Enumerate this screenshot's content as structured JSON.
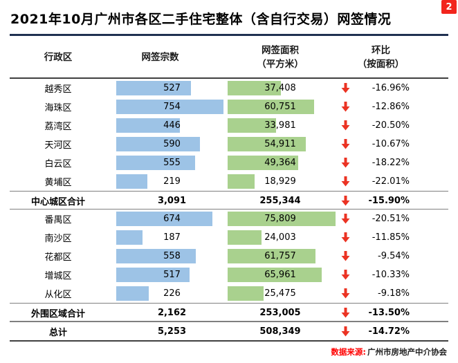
{
  "badge": {
    "label": "2",
    "color": "#f2241d"
  },
  "title": "2021年10月广州市各区二手住宅整体（含自行交易）网签情况",
  "table_headers": {
    "district": "行政区",
    "count": "网签宗数",
    "area_line1": "网签面积",
    "area_line2": "（平方米）",
    "mom_line1": "环比",
    "mom_line2": "（按面积）"
  },
  "source": {
    "label": "数据来源:",
    "value": "广州市房地产中介协会"
  },
  "chart_data": {
    "type": "table",
    "title": "2021年10月广州市各区二手住宅整体（含自行交易）网签情况",
    "columns": [
      "行政区",
      "网签宗数",
      "网签面积（平方米）",
      "环比（按面积）"
    ],
    "bar_colors": {
      "count": "#9dc3e6",
      "area": "#a9d18e"
    },
    "arrow_color": "#eb3323",
    "rows": [
      {
        "district": "越秀区",
        "count": 527,
        "count_display": "527",
        "area": 37408,
        "area_display": "37,408",
        "mom": "-16.96%",
        "kind": "district"
      },
      {
        "district": "海珠区",
        "count": 754,
        "count_display": "754",
        "area": 60751,
        "area_display": "60,751",
        "mom": "-12.86%",
        "kind": "district"
      },
      {
        "district": "荔湾区",
        "count": 446,
        "count_display": "446",
        "area": 33981,
        "area_display": "33,981",
        "mom": "-20.50%",
        "kind": "district"
      },
      {
        "district": "天河区",
        "count": 590,
        "count_display": "590",
        "area": 54911,
        "area_display": "54,911",
        "mom": "-10.67%",
        "kind": "district"
      },
      {
        "district": "白云区",
        "count": 555,
        "count_display": "555",
        "area": 49364,
        "area_display": "49,364",
        "mom": "-18.22%",
        "kind": "district"
      },
      {
        "district": "黄埔区",
        "count": 219,
        "count_display": "219",
        "area": 18929,
        "area_display": "18,929",
        "mom": "-22.01%",
        "kind": "district"
      },
      {
        "district": "中心城区合计",
        "count": 3091,
        "count_display": "3,091",
        "area": 255344,
        "area_display": "255,344",
        "mom": "-15.90%",
        "kind": "subtotal"
      },
      {
        "district": "番禺区",
        "count": 674,
        "count_display": "674",
        "area": 75809,
        "area_display": "75,809",
        "mom": "-20.51%",
        "kind": "district"
      },
      {
        "district": "南沙区",
        "count": 187,
        "count_display": "187",
        "area": 24003,
        "area_display": "24,003",
        "mom": "-11.85%",
        "kind": "district"
      },
      {
        "district": "花都区",
        "count": 558,
        "count_display": "558",
        "area": 61757,
        "area_display": "61,757",
        "mom": "-9.54%",
        "kind": "district"
      },
      {
        "district": "增城区",
        "count": 517,
        "count_display": "517",
        "area": 65961,
        "area_display": "65,961",
        "mom": "-10.33%",
        "kind": "district"
      },
      {
        "district": "从化区",
        "count": 226,
        "count_display": "226",
        "area": 25475,
        "area_display": "25,475",
        "mom": "-9.18%",
        "kind": "district"
      },
      {
        "district": "外围区域合计",
        "count": 2162,
        "count_display": "2,162",
        "area": 253005,
        "area_display": "253,005",
        "mom": "-13.50%",
        "kind": "subtotal"
      },
      {
        "district": "总计",
        "count": 5253,
        "count_display": "5,253",
        "area": 508349,
        "area_display": "508,349",
        "mom": "-14.72%",
        "kind": "total"
      }
    ]
  }
}
